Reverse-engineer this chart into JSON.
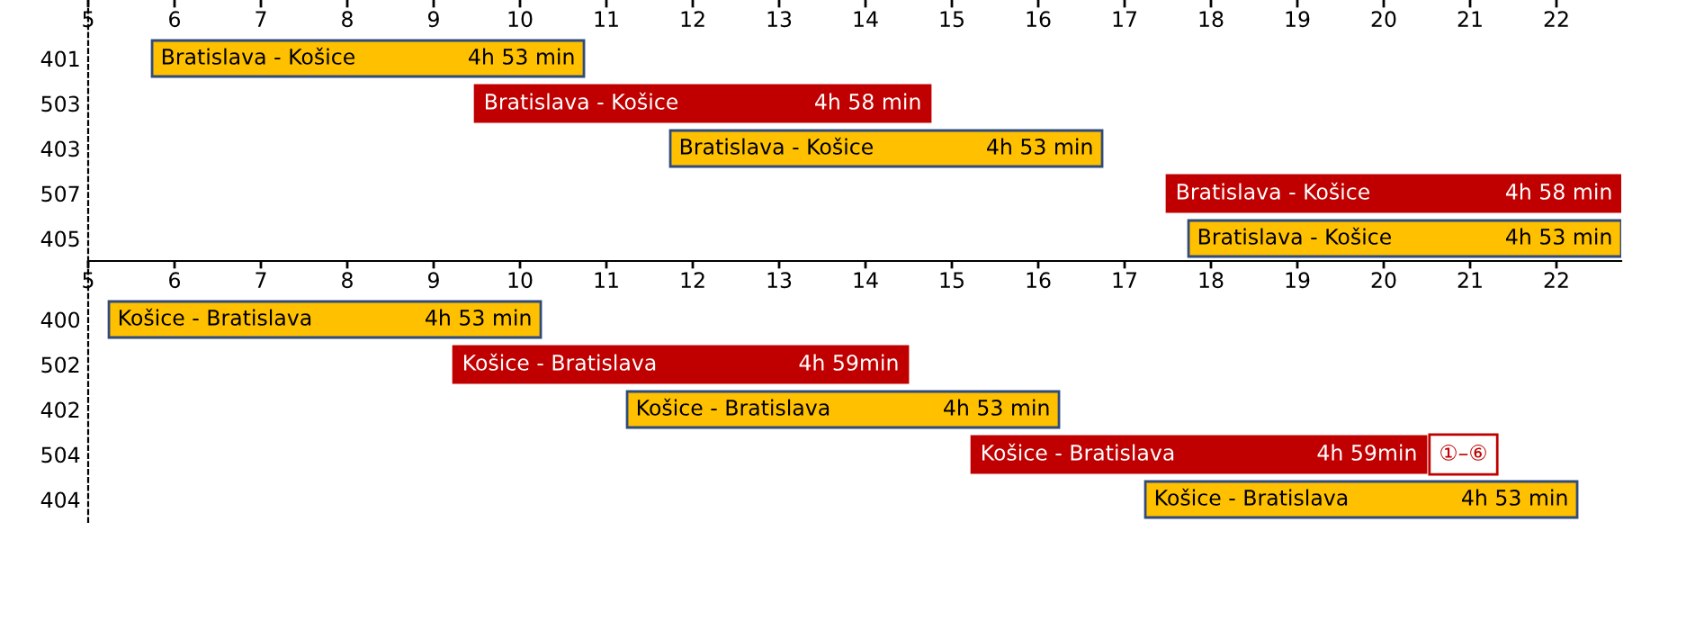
{
  "chart_data": [
    {
      "type": "bar",
      "orientation": "horizontal",
      "categories": [
        "401",
        "503",
        "403",
        "507",
        "405"
      ],
      "base": [
        5.74,
        9.48,
        11.74,
        17.49,
        17.74
      ],
      "values": [
        5.0,
        5.27,
        5.0,
        5.26,
        5.01
      ],
      "colors": [
        "#ffc000",
        "#c00000",
        "#ffc000",
        "#c00000",
        "#ffc000"
      ],
      "xlim": [
        5,
        22.75
      ],
      "xticks": [
        5,
        6,
        7,
        8,
        9,
        10,
        11,
        12,
        13,
        14,
        15,
        16,
        17,
        18,
        19,
        20,
        21,
        22
      ],
      "annotations": [
        "Bratislava - Košice",
        "4h 53 min",
        "Bratislava - Košice",
        "4h 58 min",
        "Bratislava - Košice",
        "4h 53 min",
        "Bratislava - Košice",
        "4h 58 min",
        "Bratislava - Košice",
        "4h 53 min"
      ]
    },
    {
      "type": "bar",
      "orientation": "horizontal",
      "categories": [
        "400",
        "502",
        "402",
        "504",
        "404"
      ],
      "base": [
        5.24,
        9.23,
        11.24,
        15.23,
        17.24
      ],
      "values": [
        5.0,
        5.26,
        5.0,
        5.26,
        5.0
      ],
      "colors": [
        "#ffc000",
        "#c00000",
        "#ffc000",
        "#c00000",
        "#ffc000"
      ],
      "xlim": [
        5,
        22.75
      ],
      "xticks": [
        5,
        6,
        7,
        8,
        9,
        10,
        11,
        12,
        13,
        14,
        15,
        16,
        17,
        18,
        19,
        20,
        21,
        22
      ],
      "annotations": [
        "Košice - Bratislava",
        "4h 53 min",
        "Košice - Bratislava",
        "4h 59min",
        "Košice - Bratislava",
        "4h 53 min",
        "Košice - Bratislava",
        "4h 59min",
        "Košice - Bratislava",
        "4h 53 min",
        {
          "text": "①–⑥",
          "x": 20.49,
          "y": "504"
        }
      ]
    }
  ]
}
